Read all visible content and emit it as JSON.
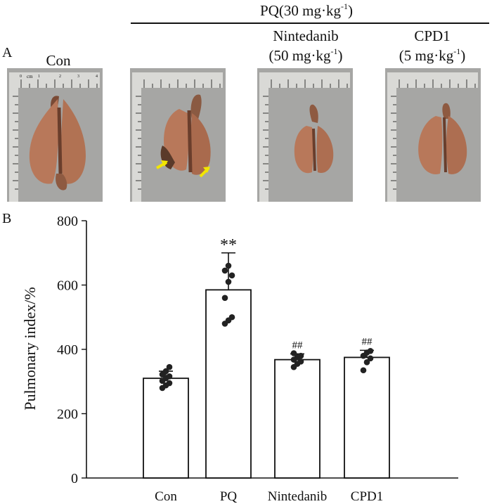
{
  "figure": {
    "panel_a_label": "A",
    "panel_b_label": "B",
    "header": {
      "pq_dose_prefix": "PQ(30 mg·kg",
      "pq_dose_exponent": "-1",
      "pq_dose_suffix": ")"
    },
    "groups": [
      {
        "name": "Con",
        "dose_prefix": "",
        "dose_exponent": "",
        "dose_suffix": ""
      },
      {
        "name": "PQ",
        "dose_prefix": "",
        "dose_exponent": "",
        "dose_suffix": ""
      },
      {
        "name": "Nintedanib",
        "dose_prefix": "(50 mg·kg",
        "dose_exponent": "-1",
        "dose_suffix": ")"
      },
      {
        "name": "CPD1",
        "dose_prefix": "(5 mg·kg",
        "dose_exponent": "-1",
        "dose_suffix": ")"
      }
    ],
    "ruler": {
      "unit": "cm",
      "ticks": [
        "0",
        "1",
        "2",
        "3",
        "4"
      ]
    },
    "photo_colors": {
      "background": "#a6a6a4",
      "lung": "#b8785a",
      "lung_dark": "#7a4a35",
      "arrow": "#f2e600"
    }
  },
  "chart_data": {
    "type": "bar",
    "categories": [
      "Con",
      "PQ",
      "Nintedanib",
      "CPD1"
    ],
    "values": [
      310,
      585,
      368,
      375
    ],
    "errors": [
      22,
      115,
      18,
      22
    ],
    "points": [
      [
        280,
        288,
        295,
        302,
        310,
        316,
        322,
        332,
        345
      ],
      [
        480,
        490,
        500,
        560,
        610,
        630,
        645,
        660
      ],
      [
        345,
        355,
        362,
        368,
        375,
        380,
        388
      ],
      [
        335,
        360,
        372,
        380,
        390,
        395
      ]
    ],
    "annotations": [
      "",
      "**",
      "##",
      "##"
    ],
    "ylabel": "Pulmonary index/%",
    "xlabel": "",
    "ylim": [
      0,
      800
    ],
    "yticks": [
      0,
      200,
      400,
      600,
      800
    ],
    "colors": {
      "bar_fill": "#ffffff",
      "bar_edge": "#111111",
      "point": "#222222"
    }
  }
}
